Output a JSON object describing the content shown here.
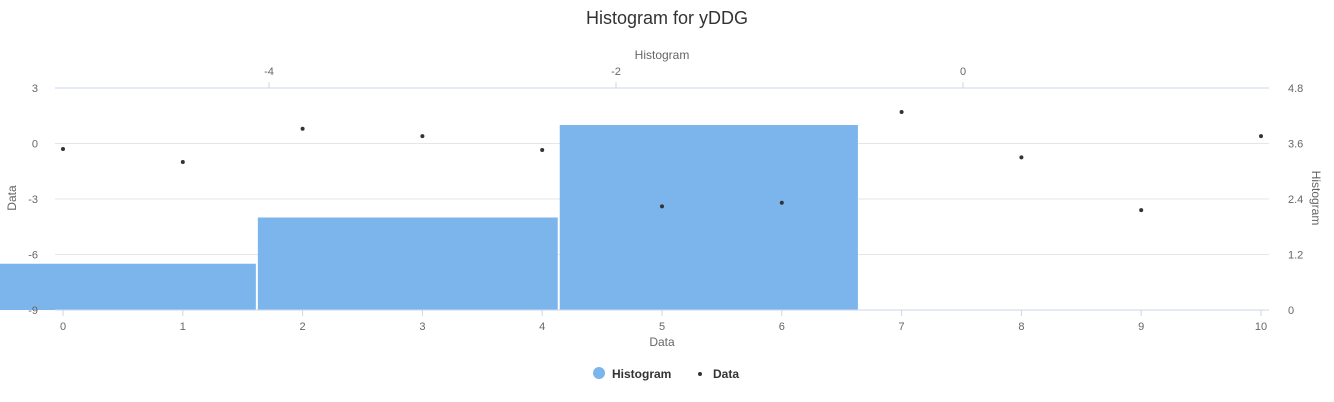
{
  "chart_data": {
    "type": "histogram",
    "title": "Histogram for yDDG",
    "x_bottom": {
      "label": "Data",
      "ticks": [
        "0",
        "1",
        "2",
        "3",
        "4",
        "5",
        "6",
        "7",
        "8",
        "9",
        "10"
      ],
      "range": [
        0,
        10
      ]
    },
    "x_top": {
      "label": "Histogram",
      "ticks": [
        "-4",
        "-2",
        "0"
      ],
      "tick_values": [
        -4,
        -2,
        0
      ]
    },
    "y_left": {
      "label": "Data",
      "ticks": [
        "3",
        "0",
        "-3",
        "-6",
        "-9"
      ],
      "range": [
        -9,
        3
      ]
    },
    "y_right": {
      "label": "Histogram",
      "ticks": [
        "4.8",
        "3.6",
        "2.4",
        "1.2",
        "0"
      ],
      "range": [
        0,
        4.8
      ]
    },
    "series": [
      {
        "name": "Histogram",
        "type": "column",
        "color": "#7cb5ec",
        "bins": [
          {
            "x_start": -5.8,
            "x_end": -4.07,
            "value": 1
          },
          {
            "x_start": -4.07,
            "x_end": -2.33,
            "value": 2
          },
          {
            "x_start": -2.33,
            "x_end": -0.6,
            "value": 4
          }
        ]
      },
      {
        "name": "Data",
        "type": "scatter",
        "color": "#333333",
        "points": [
          {
            "x": 0,
            "y": -0.3
          },
          {
            "x": 1,
            "y": -1.0
          },
          {
            "x": 2,
            "y": 0.8
          },
          {
            "x": 3,
            "y": 0.4
          },
          {
            "x": 4,
            "y": -0.35
          },
          {
            "x": 5,
            "y": -3.4
          },
          {
            "x": 6,
            "y": -3.2
          },
          {
            "x": 7,
            "y": 1.7
          },
          {
            "x": 8,
            "y": -0.75
          },
          {
            "x": 9,
            "y": -3.6
          },
          {
            "x": 10,
            "y": 0.4
          }
        ]
      }
    ],
    "legend": {
      "position": "bottom-center",
      "items": [
        "Histogram",
        "Data"
      ]
    },
    "grid": true
  }
}
